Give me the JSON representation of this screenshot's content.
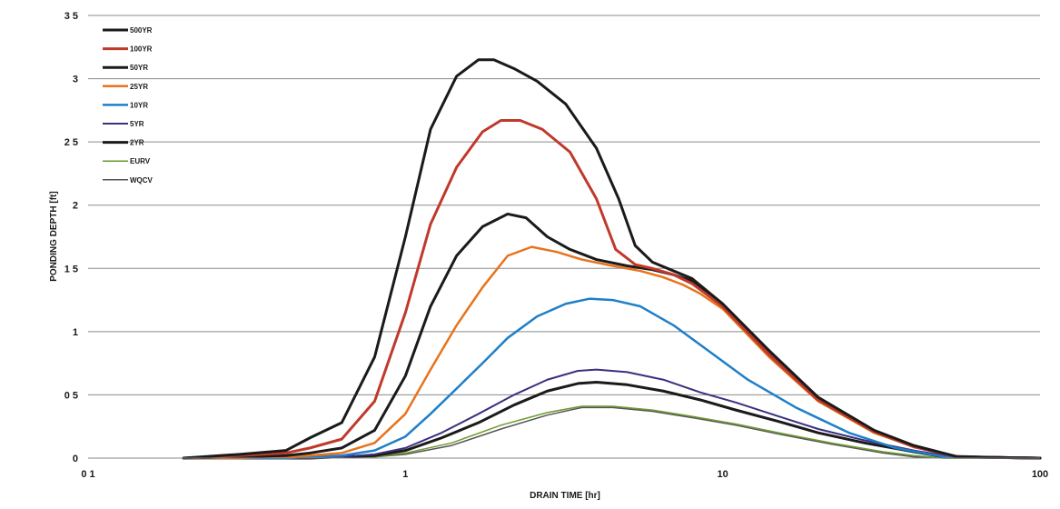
{
  "chart_data": {
    "type": "line",
    "title": "",
    "xlabel": "DRAIN TIME [hr]",
    "ylabel": "PONDING DEPTH [ft]",
    "x_scale": "log",
    "xlim": [
      0.1,
      100
    ],
    "ylim": [
      0,
      3.5
    ],
    "x_tick_labels": [
      "0 1",
      "1",
      "10",
      "100"
    ],
    "y_tick_labels": [
      "0",
      "0 5",
      "1",
      "1 5",
      "2",
      "2 5",
      "3",
      "3 5"
    ],
    "grid": "horizontal",
    "legend_position": "top-left",
    "series": [
      {
        "name": "500YR",
        "color": "#1a1a1a",
        "points": [
          [
            0.2,
            0
          ],
          [
            0.3,
            0.03
          ],
          [
            0.42,
            0.06
          ],
          [
            0.5,
            0.16
          ],
          [
            0.63,
            0.28
          ],
          [
            0.8,
            0.8
          ],
          [
            1.0,
            1.75
          ],
          [
            1.2,
            2.6
          ],
          [
            1.45,
            3.02
          ],
          [
            1.7,
            3.15
          ],
          [
            1.9,
            3.15
          ],
          [
            2.2,
            3.08
          ],
          [
            2.6,
            2.98
          ],
          [
            3.2,
            2.8
          ],
          [
            4.0,
            2.45
          ],
          [
            4.7,
            2.05
          ],
          [
            5.3,
            1.68
          ],
          [
            6.0,
            1.55
          ],
          [
            7.0,
            1.48
          ],
          [
            8.0,
            1.42
          ],
          [
            10,
            1.22
          ],
          [
            14,
            0.85
          ],
          [
            20,
            0.48
          ],
          [
            30,
            0.22
          ],
          [
            40,
            0.1
          ],
          [
            55,
            0.01
          ],
          [
            100,
            0
          ]
        ]
      },
      {
        "name": "100YR",
        "color": "#c0392b",
        "points": [
          [
            0.2,
            0
          ],
          [
            0.3,
            0.02
          ],
          [
            0.42,
            0.04
          ],
          [
            0.5,
            0.08
          ],
          [
            0.63,
            0.15
          ],
          [
            0.8,
            0.45
          ],
          [
            1.0,
            1.15
          ],
          [
            1.2,
            1.85
          ],
          [
            1.45,
            2.3
          ],
          [
            1.75,
            2.58
          ],
          [
            2.0,
            2.67
          ],
          [
            2.3,
            2.67
          ],
          [
            2.7,
            2.6
          ],
          [
            3.3,
            2.42
          ],
          [
            4.0,
            2.05
          ],
          [
            4.6,
            1.65
          ],
          [
            5.3,
            1.53
          ],
          [
            6.0,
            1.5
          ],
          [
            7.0,
            1.45
          ],
          [
            8.0,
            1.38
          ],
          [
            10,
            1.2
          ],
          [
            14,
            0.82
          ],
          [
            20,
            0.46
          ],
          [
            30,
            0.21
          ],
          [
            40,
            0.09
          ],
          [
            55,
            0.01
          ],
          [
            100,
            0
          ]
        ]
      },
      {
        "name": "50YR",
        "color": "#1a1a1a",
        "points": [
          [
            0.2,
            0
          ],
          [
            0.3,
            0.01
          ],
          [
            0.42,
            0.02
          ],
          [
            0.5,
            0.04
          ],
          [
            0.63,
            0.08
          ],
          [
            0.8,
            0.22
          ],
          [
            1.0,
            0.65
          ],
          [
            1.2,
            1.2
          ],
          [
            1.45,
            1.6
          ],
          [
            1.75,
            1.83
          ],
          [
            2.1,
            1.93
          ],
          [
            2.4,
            1.9
          ],
          [
            2.8,
            1.75
          ],
          [
            3.3,
            1.65
          ],
          [
            4.0,
            1.57
          ],
          [
            5.0,
            1.52
          ],
          [
            6.0,
            1.49
          ],
          [
            7.0,
            1.45
          ],
          [
            8.0,
            1.4
          ],
          [
            10,
            1.2
          ],
          [
            14,
            0.82
          ],
          [
            20,
            0.46
          ],
          [
            30,
            0.21
          ],
          [
            40,
            0.09
          ],
          [
            55,
            0.01
          ],
          [
            100,
            0
          ]
        ]
      },
      {
        "name": "25YR",
        "color": "#e8731c",
        "points": [
          [
            0.2,
            0
          ],
          [
            0.3,
            0.0
          ],
          [
            0.42,
            0.01
          ],
          [
            0.5,
            0.02
          ],
          [
            0.63,
            0.04
          ],
          [
            0.8,
            0.12
          ],
          [
            1.0,
            0.35
          ],
          [
            1.2,
            0.7
          ],
          [
            1.45,
            1.05
          ],
          [
            1.75,
            1.35
          ],
          [
            2.1,
            1.6
          ],
          [
            2.5,
            1.67
          ],
          [
            3.0,
            1.63
          ],
          [
            3.6,
            1.57
          ],
          [
            4.5,
            1.52
          ],
          [
            5.5,
            1.48
          ],
          [
            6.5,
            1.43
          ],
          [
            7.5,
            1.37
          ],
          [
            8.5,
            1.3
          ],
          [
            10,
            1.18
          ],
          [
            14,
            0.8
          ],
          [
            20,
            0.45
          ],
          [
            30,
            0.2
          ],
          [
            40,
            0.09
          ],
          [
            55,
            0.01
          ],
          [
            100,
            0
          ]
        ]
      },
      {
        "name": "10YR",
        "color": "#1e7fc8",
        "points": [
          [
            0.2,
            0
          ],
          [
            0.3,
            0.0
          ],
          [
            0.42,
            0.0
          ],
          [
            0.5,
            0.01
          ],
          [
            0.63,
            0.02
          ],
          [
            0.8,
            0.06
          ],
          [
            1.0,
            0.17
          ],
          [
            1.2,
            0.35
          ],
          [
            1.45,
            0.55
          ],
          [
            1.75,
            0.75
          ],
          [
            2.1,
            0.95
          ],
          [
            2.6,
            1.12
          ],
          [
            3.2,
            1.22
          ],
          [
            3.8,
            1.26
          ],
          [
            4.5,
            1.25
          ],
          [
            5.5,
            1.2
          ],
          [
            7.0,
            1.05
          ],
          [
            9.0,
            0.85
          ],
          [
            12,
            0.62
          ],
          [
            17,
            0.4
          ],
          [
            25,
            0.2
          ],
          [
            35,
            0.08
          ],
          [
            50,
            0.01
          ],
          [
            100,
            0
          ]
        ]
      },
      {
        "name": "5YR",
        "color": "#3c2f80",
        "points": [
          [
            0.2,
            0
          ],
          [
            0.3,
            0.0
          ],
          [
            0.42,
            0.0
          ],
          [
            0.5,
            0.01
          ],
          [
            0.63,
            0.01
          ],
          [
            0.8,
            0.03
          ],
          [
            1.0,
            0.08
          ],
          [
            1.3,
            0.2
          ],
          [
            1.7,
            0.35
          ],
          [
            2.2,
            0.5
          ],
          [
            2.8,
            0.62
          ],
          [
            3.5,
            0.69
          ],
          [
            4.0,
            0.7
          ],
          [
            5.0,
            0.68
          ],
          [
            6.5,
            0.62
          ],
          [
            8.5,
            0.52
          ],
          [
            11,
            0.44
          ],
          [
            15,
            0.33
          ],
          [
            20,
            0.23
          ],
          [
            28,
            0.14
          ],
          [
            40,
            0.06
          ],
          [
            50,
            0.02
          ],
          [
            100,
            0
          ]
        ]
      },
      {
        "name": "2YR",
        "color": "#1a1a1a",
        "points": [
          [
            0.2,
            0
          ],
          [
            0.3,
            0.0
          ],
          [
            0.42,
            0.0
          ],
          [
            0.5,
            0.0
          ],
          [
            0.63,
            0.01
          ],
          [
            0.8,
            0.02
          ],
          [
            1.0,
            0.06
          ],
          [
            1.3,
            0.16
          ],
          [
            1.7,
            0.28
          ],
          [
            2.2,
            0.42
          ],
          [
            2.8,
            0.53
          ],
          [
            3.5,
            0.59
          ],
          [
            4.0,
            0.6
          ],
          [
            5.0,
            0.58
          ],
          [
            6.5,
            0.53
          ],
          [
            8.5,
            0.46
          ],
          [
            11,
            0.38
          ],
          [
            15,
            0.29
          ],
          [
            20,
            0.2
          ],
          [
            28,
            0.12
          ],
          [
            40,
            0.05
          ],
          [
            50,
            0.01
          ],
          [
            100,
            0
          ]
        ]
      },
      {
        "name": "EURV",
        "color": "#6a9a2c",
        "points": [
          [
            0.2,
            0
          ],
          [
            0.5,
            0.0
          ],
          [
            0.8,
            0.01
          ],
          [
            1.0,
            0.04
          ],
          [
            1.4,
            0.12
          ],
          [
            2.0,
            0.26
          ],
          [
            2.8,
            0.36
          ],
          [
            3.6,
            0.41
          ],
          [
            4.5,
            0.41
          ],
          [
            6.0,
            0.38
          ],
          [
            8.0,
            0.33
          ],
          [
            11,
            0.27
          ],
          [
            15,
            0.2
          ],
          [
            22,
            0.12
          ],
          [
            32,
            0.05
          ],
          [
            40,
            0.02
          ],
          [
            50,
            0.0
          ],
          [
            100,
            0
          ]
        ]
      },
      {
        "name": "WQCV",
        "color": "#555555",
        "points": [
          [
            0.2,
            0
          ],
          [
            0.5,
            0.0
          ],
          [
            0.8,
            0.01
          ],
          [
            1.0,
            0.03
          ],
          [
            1.4,
            0.1
          ],
          [
            2.0,
            0.23
          ],
          [
            2.8,
            0.34
          ],
          [
            3.6,
            0.4
          ],
          [
            4.5,
            0.4
          ],
          [
            6.0,
            0.37
          ],
          [
            8.0,
            0.32
          ],
          [
            11,
            0.26
          ],
          [
            15,
            0.19
          ],
          [
            22,
            0.11
          ],
          [
            32,
            0.04
          ],
          [
            40,
            0.01
          ],
          [
            50,
            0.0
          ],
          [
            100,
            0
          ]
        ]
      }
    ]
  }
}
